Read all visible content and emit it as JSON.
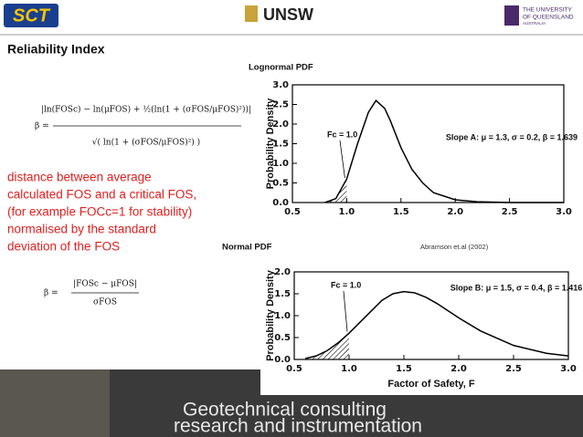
{
  "header": {
    "logo_left": "SCT",
    "logo_center": "UNSW",
    "logo_right_line1": "THE UNIVERSITY",
    "logo_right_line2": "OF QUEENSLAND",
    "logo_right_line3": "AUSTRALIA"
  },
  "title": "Reliability Index",
  "formula_lognormal": {
    "lhs": "β =",
    "numerator": "|ln(FOSc) − ln(μFOS) + ½(ln(1 + (σFOS/μFOS)²))|",
    "denominator": "√( ln(1 + (σFOS/μFOS)²) )"
  },
  "description": [
    "distance between average",
    "calculated FOS and a critical FOS,",
    "(for example FOCc=1 for stability)",
    "normalised by the standard",
    "deviation of the FOS"
  ],
  "formula_normal": {
    "lhs": "β =",
    "numerator": "|FOSc − μFOS|",
    "denominator": "σFOS"
  },
  "citation": "Abramson et.al (2002)",
  "footer": {
    "line1": "Geotechnical consulting",
    "line2": "research and instrumentation"
  },
  "chart_data": [
    {
      "type": "line",
      "title": "Lognormal PDF",
      "ylabel": "Probability Density",
      "annotations": [
        "Fc = 1.0",
        "Slope A: μ = 1.3, σ = 0.2, β = 1.639"
      ],
      "x": [
        0.8,
        0.9,
        1.0,
        1.1,
        1.2,
        1.27,
        1.35,
        1.4,
        1.5,
        1.6,
        1.7,
        1.8,
        2.0,
        2.2,
        2.5,
        3.0
      ],
      "values": [
        0.0,
        0.1,
        0.6,
        1.5,
        2.3,
        2.6,
        2.4,
        2.1,
        1.4,
        0.85,
        0.5,
        0.25,
        0.07,
        0.02,
        0.0,
        0.0
      ],
      "color": "#000000",
      "xlim": [
        0.5,
        3.0
      ],
      "xticks": [
        0.5,
        {
          "value": 1,
          "label": "1.0"
        },
        1.5,
        {
          "value": 2,
          "label": "2.0"
        },
        2.5,
        {
          "value": 3,
          "label": "3.0"
        }
      ],
      "ylim": [
        0,
        3
      ],
      "yticks": [
        {
          "value": 0,
          "label": "0.0"
        },
        0.5,
        {
          "value": 1,
          "label": "1.0"
        },
        1.5,
        {
          "value": 2,
          "label": "2.0"
        },
        2.5,
        {
          "value": 3,
          "label": "3.0"
        }
      ],
      "grid": false
    },
    {
      "type": "line",
      "title": "Normal PDF",
      "ylabel": "Probability Density",
      "xlabel": "Factor of Safety, F",
      "annotations": [
        "Fc = 1.0",
        "Slope B: μ = 1.5, σ = 0.4, β = 1.416"
      ],
      "x": [
        0.6,
        0.7,
        0.8,
        0.9,
        1.0,
        1.1,
        1.2,
        1.3,
        1.4,
        1.5,
        1.6,
        1.7,
        1.8,
        2.0,
        2.2,
        2.5,
        2.8,
        3.0
      ],
      "values": [
        0.02,
        0.08,
        0.2,
        0.38,
        0.6,
        0.85,
        1.1,
        1.35,
        1.5,
        1.55,
        1.52,
        1.42,
        1.28,
        0.95,
        0.65,
        0.32,
        0.14,
        0.08
      ],
      "color": "#000000",
      "xlim": [
        0.5,
        3.0
      ],
      "xticks": [
        0.5,
        {
          "value": 1,
          "label": "1.0"
        },
        1.5,
        {
          "value": 2,
          "label": "2.0"
        },
        2.5,
        {
          "value": 3,
          "label": "3.0"
        }
      ],
      "ylim": [
        0,
        2
      ],
      "yticks": [
        {
          "value": 0,
          "label": "0.0"
        },
        0.5,
        {
          "value": 1,
          "label": "1.0"
        },
        1.5,
        {
          "value": 2,
          "label": "2.0"
        }
      ],
      "grid": false
    }
  ]
}
